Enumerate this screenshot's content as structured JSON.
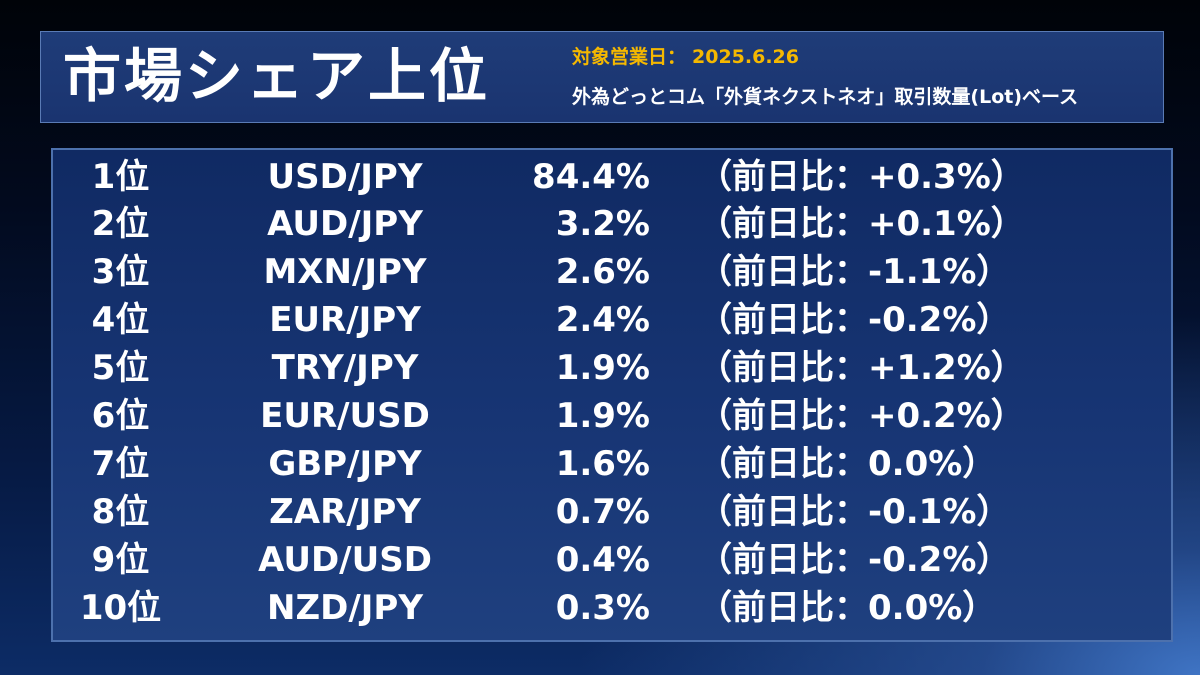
{
  "header": {
    "title": "市場シェア上位",
    "date_label": "対象営業日：",
    "date_value": "2025.6.26",
    "subtitle": "外為どっとコム「外貨ネクストネオ」取引数量(Lot)ベース"
  },
  "colors": {
    "accent_date": "#f5b800",
    "panel_border": "#4d71ad",
    "text": "#ffffff"
  },
  "rankings": [
    {
      "rank": "1位",
      "pair": "USD/JPY",
      "share": "84.4%",
      "change": "（前日比：+0.3%）"
    },
    {
      "rank": "2位",
      "pair": "AUD/JPY",
      "share": "3.2%",
      "change": "（前日比：+0.1%）"
    },
    {
      "rank": "3位",
      "pair": "MXN/JPY",
      "share": "2.6%",
      "change": "（前日比：-1.1%）"
    },
    {
      "rank": "4位",
      "pair": "EUR/JPY",
      "share": "2.4%",
      "change": "（前日比：-0.2%）"
    },
    {
      "rank": "5位",
      "pair": "TRY/JPY",
      "share": "1.9%",
      "change": "（前日比：+1.2%）"
    },
    {
      "rank": "6位",
      "pair": "EUR/USD",
      "share": "1.9%",
      "change": "（前日比：+0.2%）"
    },
    {
      "rank": "7位",
      "pair": "GBP/JPY",
      "share": "1.6%",
      "change": "（前日比：0.0%）"
    },
    {
      "rank": "8位",
      "pair": "ZAR/JPY",
      "share": "0.7%",
      "change": "（前日比：-0.1%）"
    },
    {
      "rank": "9位",
      "pair": "AUD/USD",
      "share": "0.4%",
      "change": "（前日比：-0.2%）"
    },
    {
      "rank": "10位",
      "pair": "NZD/JPY",
      "share": "0.3%",
      "change": "（前日比：0.0%）"
    }
  ]
}
